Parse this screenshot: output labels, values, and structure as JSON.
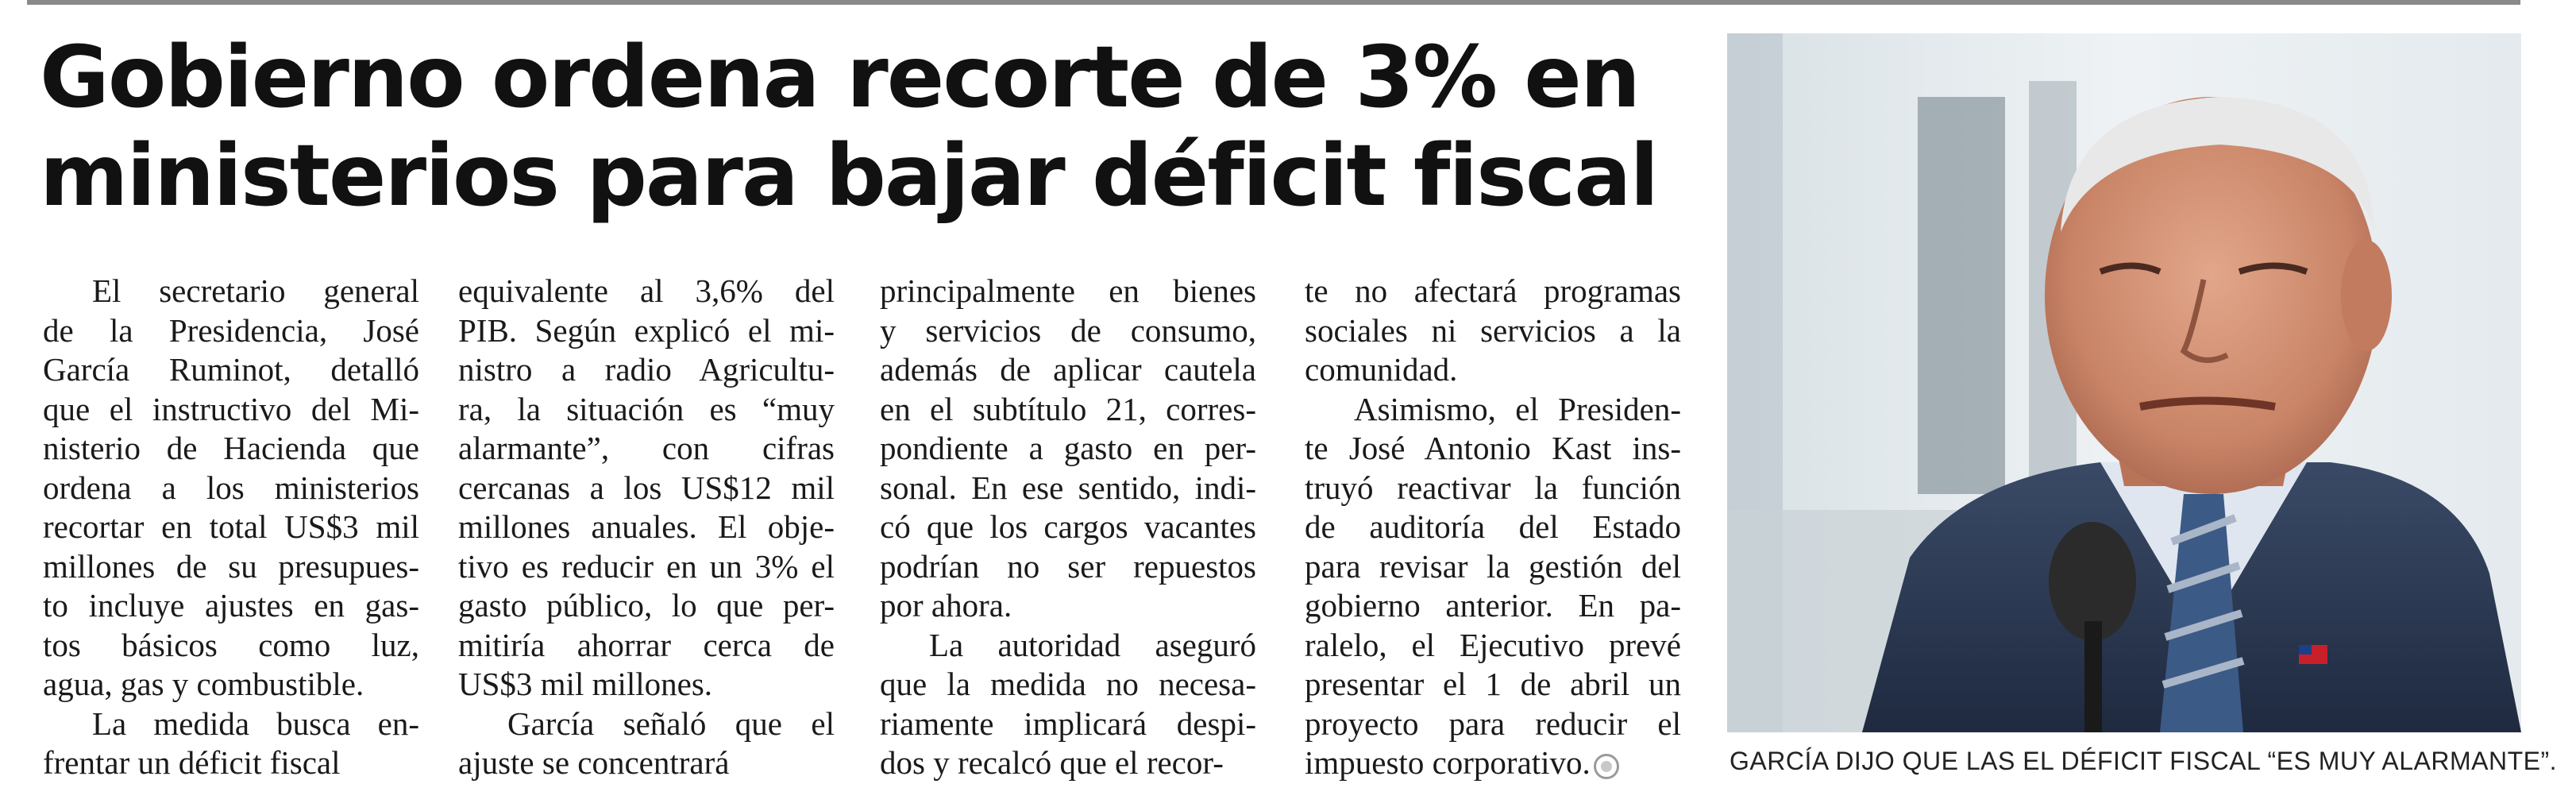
{
  "article": {
    "headline_line1": "Gobierno ordena recorte de 3% en",
    "headline_line2": "ministerios para bajar déficit fiscal",
    "columns": [
      [
        {
          "indent": true,
          "lines": [
            "El secretario general",
            "de la Presidencia, José",
            "García Ruminot, detalló",
            "que el instructivo del Mi-",
            "nisterio de Hacienda que",
            "ordena a los ministerios",
            "recortar en total US$3 mil",
            "millones de su presupues-",
            "to incluye ajustes en gas-",
            "tos básicos como luz,",
            "agua, gas y combustible."
          ]
        },
        {
          "indent": true,
          "lines": [
            "La medida busca en-",
            "frentar un déficit fiscal"
          ]
        }
      ],
      [
        {
          "indent": false,
          "lines": [
            "equivalente al 3,6% del",
            "PIB. Según explicó el mi-",
            "nistro a radio Agricultu-",
            "ra, la situación es “muy",
            "alarmante”, con cifras",
            "cercanas a los US$12 mil",
            "millones anuales. El obje-",
            "tivo es reducir en un 3% el",
            "gasto público, lo que per-",
            "mitiría ahorrar cerca de",
            "US$3 mil millones."
          ]
        },
        {
          "indent": true,
          "lines": [
            "García señaló que el",
            "ajuste se concentrará"
          ]
        }
      ],
      [
        {
          "indent": false,
          "lines": [
            "principalmente en bienes",
            "y servicios de consumo,",
            "además de aplicar cautela",
            "en el subtítulo 21, corres-",
            "pondiente a gasto en per-",
            "sonal. En ese sentido, indi-",
            "có que los cargos vacantes",
            "podrían no ser repuestos",
            "por ahora."
          ]
        },
        {
          "indent": true,
          "lines": [
            "La autoridad aseguró",
            "que la medida no necesa-",
            "riamente implicará despi-",
            "dos y recalcó que el recor-"
          ]
        }
      ],
      [
        {
          "indent": false,
          "lines": [
            "te no afectará programas",
            "sociales ni servicios a la",
            "comunidad."
          ]
        },
        {
          "indent": true,
          "lines": [
            "Asimismo, el Presiden-",
            "te José Antonio Kast ins-",
            "truyó reactivar la función",
            "de auditoría del Estado",
            "para revisar la gestión del",
            "gobierno anterior. En pa-",
            "ralelo, el Ejecutivo prevé",
            "presentar el 1 de abril un",
            "proyecto para reducir el",
            "impuesto corporativo."
          ]
        }
      ]
    ]
  },
  "photo": {
    "caption": "GARCÍA DIJO QUE LAS EL DÉFICIT FISCAL “ES MUY ALARMANTE”."
  }
}
